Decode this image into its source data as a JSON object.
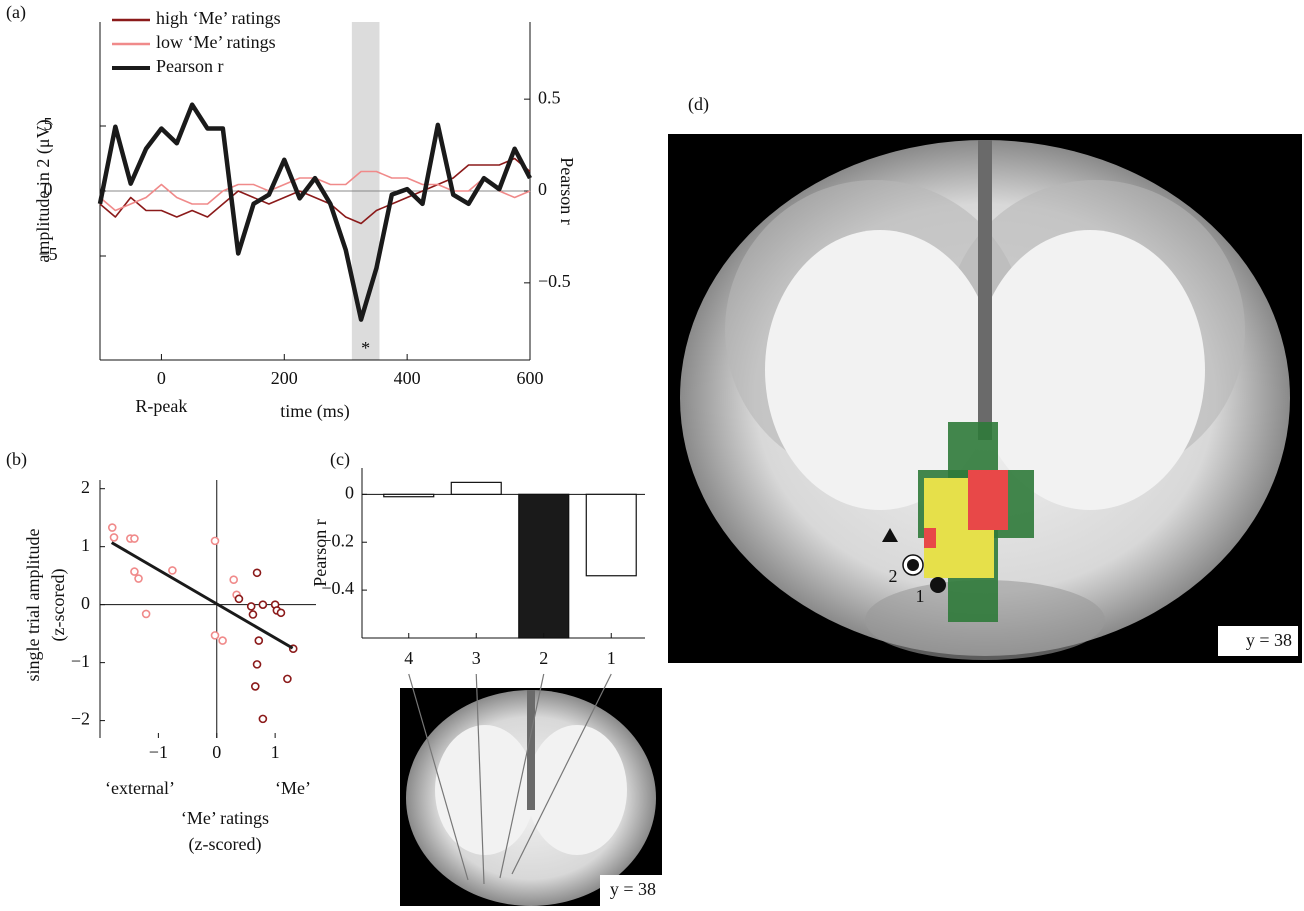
{
  "chart_data": [
    {
      "type": "line",
      "label": "(a)",
      "ylabel": "amplitude in 2 (μV)",
      "y2label": "Pearson r",
      "xlabel": "time (ms)",
      "annotations": [
        "R-peak",
        "*"
      ],
      "xlim": [
        -100,
        600
      ],
      "xticks": [
        0,
        200,
        400,
        600
      ],
      "ylim": [
        -13,
        13
      ],
      "yticks": [
        {
          "value": -5,
          "label": "−5"
        },
        0,
        5
      ],
      "y2lim": [
        -0.92,
        0.92
      ],
      "y2ticks": [
        {
          "value": -0.5,
          "label": "−0.5"
        },
        0,
        0.5
      ],
      "shaded_span": [
        310,
        355
      ],
      "x": [
        -100,
        -75,
        -50,
        -25,
        0,
        25,
        50,
        75,
        100,
        125,
        150,
        175,
        200,
        225,
        250,
        275,
        300,
        325,
        350,
        375,
        400,
        425,
        450,
        475,
        500,
        525,
        550,
        575,
        600
      ],
      "series": [
        {
          "name": "high ‘Me’ ratings",
          "color": "#8b1a1a",
          "values": [
            -1,
            -2,
            -0.5,
            -1.5,
            -1.5,
            -2,
            -1.5,
            -2,
            -1,
            0,
            -0.5,
            -1,
            -0.5,
            0,
            -0.5,
            -1,
            -2,
            -2.5,
            -1.5,
            -1,
            -0.5,
            0,
            0.5,
            1,
            2,
            2,
            2,
            2.5,
            1.5
          ]
        },
        {
          "name": "low ‘Me’ ratings",
          "color": "#f08a8a",
          "values": [
            -0.5,
            -1.5,
            -1,
            -0.5,
            0.5,
            -0.5,
            -1,
            -1,
            0,
            0.5,
            0.5,
            0,
            0.5,
            1,
            1,
            0.5,
            0.5,
            1.5,
            1.5,
            1,
            1,
            0.5,
            0.5,
            0,
            0,
            1,
            0,
            -0.5,
            0
          ]
        },
        {
          "name": "Pearson r",
          "color": "#1a1a1a",
          "axis": "y2",
          "values": [
            -0.07,
            0.35,
            0.04,
            0.23,
            0.34,
            0.26,
            0.47,
            0.34,
            0.34,
            -0.34,
            -0.07,
            -0.02,
            0.17,
            -0.04,
            0.07,
            -0.07,
            -0.32,
            -0.7,
            -0.42,
            -0.02,
            0.01,
            -0.07,
            0.36,
            -0.02,
            -0.07,
            0.07,
            0.01,
            0.23,
            0.07
          ]
        }
      ]
    },
    {
      "type": "scatter",
      "label": "(b)",
      "ylabel": [
        "single trial amplitude",
        "(z-scored)"
      ],
      "xlabel": [
        "‘Me’ ratings",
        "(z-scored)"
      ],
      "annotations": [
        "‘external’",
        "‘Me’"
      ],
      "xlim": [
        -2.0,
        1.7
      ],
      "xticks": [
        {
          "value": -1,
          "label": "−1"
        },
        0,
        1
      ],
      "ylim": [
        -2.3,
        2.15
      ],
      "yticks": [
        {
          "value": -2,
          "label": "−2"
        },
        {
          "value": -1,
          "label": "−1"
        },
        0,
        1,
        2
      ],
      "series": [
        {
          "color": "#f08a8a",
          "x": [
            -1.79,
            -1.76,
            -1.48,
            -1.41,
            -1.41,
            -1.34,
            -1.21,
            -0.76,
            -0.03,
            -0.03,
            0.1,
            0.29,
            0.34
          ],
          "values": [
            1.33,
            1.16,
            1.14,
            1.14,
            0.57,
            0.45,
            -0.16,
            0.59,
            1.1,
            -0.53,
            -0.62,
            0.43,
            0.17
          ]
        },
        {
          "color": "#8b1a1a",
          "x": [
            0.38,
            0.69,
            0.59,
            0.62,
            0.79,
            1.0,
            1.03,
            0.72,
            1.1,
            0.69,
            1.31,
            0.66,
            1.21,
            0.79
          ],
          "values": [
            0.1,
            0.55,
            -0.03,
            -0.17,
            0,
            0,
            -0.1,
            -0.62,
            -0.14,
            -1.03,
            -0.76,
            -1.41,
            -1.28,
            -1.97
          ]
        }
      ],
      "fit": {
        "color": "#1a1a1a",
        "x": [
          -1.8,
          1.3
        ],
        "values": [
          1.07,
          -0.75
        ]
      }
    },
    {
      "type": "bar",
      "label": "(c)",
      "ylabel": "Pearson r",
      "inset_label": "y = 38",
      "categories": [
        "4",
        "3",
        "2",
        "1"
      ],
      "values": [
        -0.01,
        0.05,
        -0.6,
        -0.34
      ],
      "colors": [
        "#ffffff",
        "#ffffff",
        "#1a1a1a",
        "#ffffff"
      ],
      "ylim": [
        -0.6,
        0.11
      ],
      "yticks": [
        {
          "value": -0.4,
          "label": "−0.4"
        },
        {
          "value": -0.2,
          "label": "−0.2"
        },
        0
      ]
    }
  ],
  "panel_d": {
    "label": "(d)",
    "slice_label": "y = 38",
    "markers": [
      "2",
      "1"
    ]
  }
}
